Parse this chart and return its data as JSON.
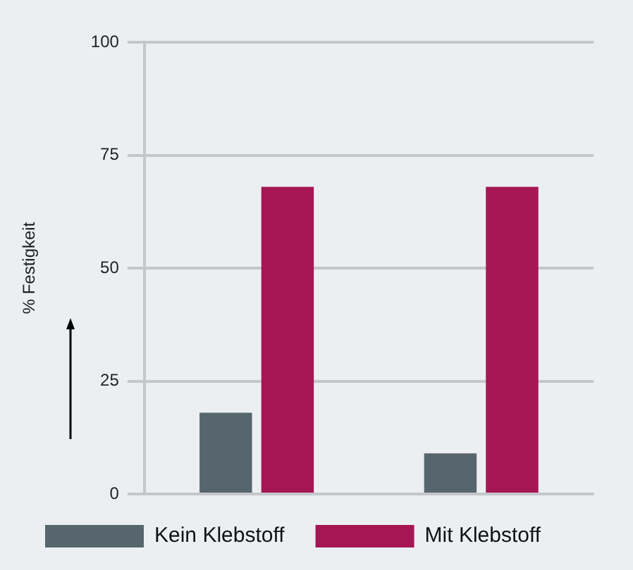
{
  "chart_data": {
    "type": "bar",
    "ylabel": "% Festigkeit",
    "categories": [
      null,
      null
    ],
    "series": [
      {
        "name": "Kein Klebstoff",
        "color": "#57656d",
        "values": [
          18,
          9
        ]
      },
      {
        "name": "Mit Klebstoff",
        "color": "#a51655",
        "values": [
          68,
          68
        ]
      }
    ],
    "ylim": [
      0,
      100
    ],
    "yticks": [
      0,
      25,
      50,
      75,
      100
    ],
    "grid": "y",
    "legend": "bottom",
    "tick_labels": "y"
  }
}
